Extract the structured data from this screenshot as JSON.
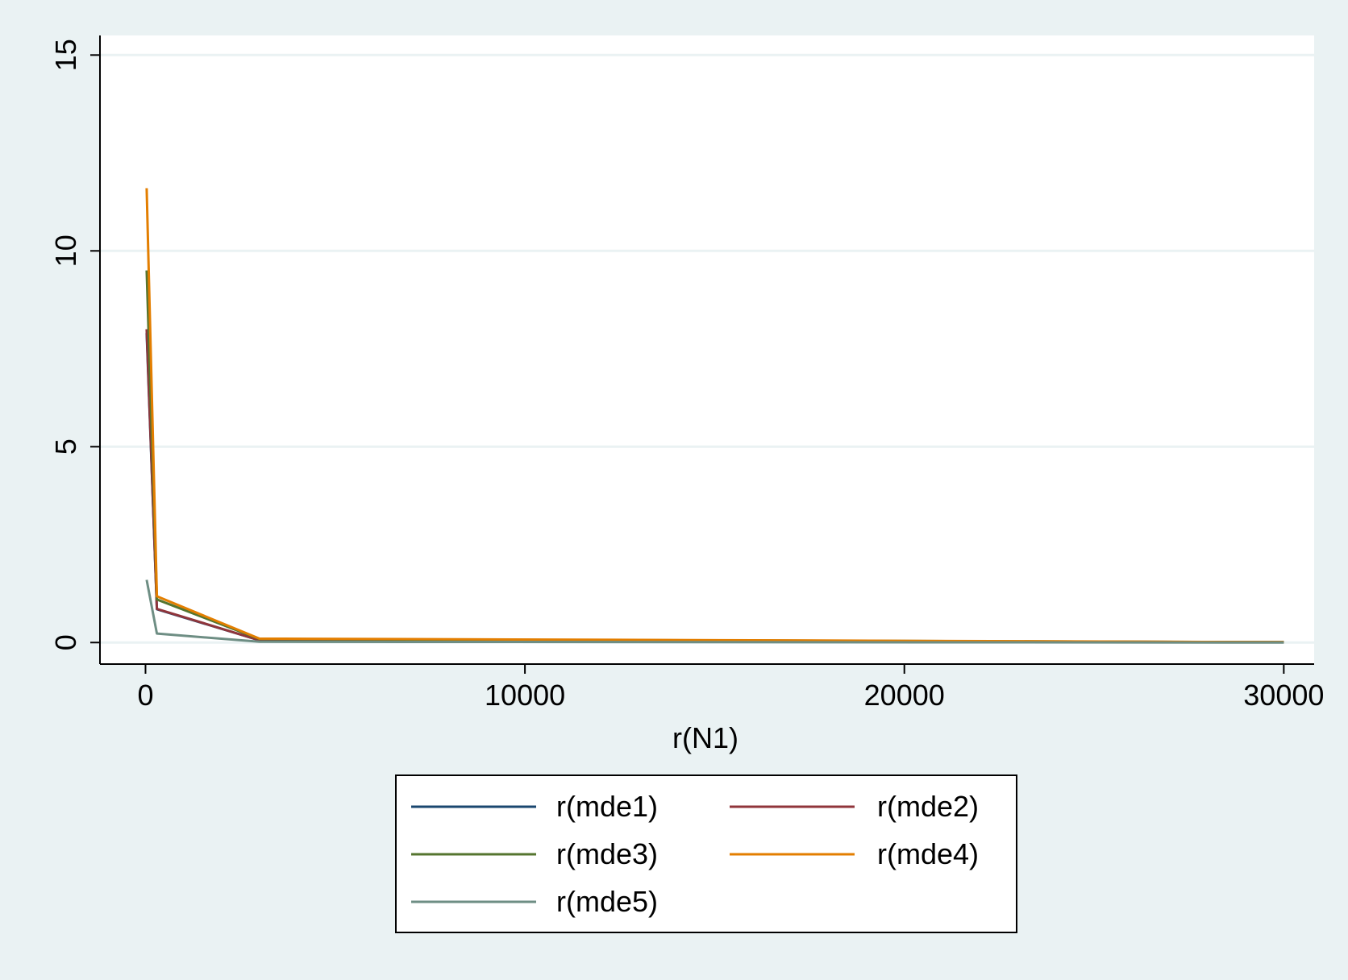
{
  "chart_data": {
    "type": "line",
    "title": "",
    "xlabel": "r(N1)",
    "ylabel": "",
    "xlim": [
      -1200,
      30800
    ],
    "ylim": [
      -0.55,
      15.5
    ],
    "xticks": [
      0,
      10000,
      20000,
      30000
    ],
    "yticks": [
      0,
      5,
      10,
      15
    ],
    "grid": "horizontal",
    "legend_placement": "bottom",
    "background_color": "#eaf2f3",
    "plot_background_color": "#ffffff",
    "gridline_color": "#eaf2f3",
    "x": [
      30,
      300,
      3000,
      30000
    ],
    "series": [
      {
        "name": "r(mde1)",
        "color": "#1a476f",
        "values": [
          7.9,
          0.85,
          0.06,
          0.01
        ]
      },
      {
        "name": "r(mde2)",
        "color": "#90353b",
        "values": [
          8.0,
          0.86,
          0.06,
          0.01
        ]
      },
      {
        "name": "r(mde3)",
        "color": "#55752f",
        "values": [
          9.5,
          1.1,
          0.09,
          0.01
        ]
      },
      {
        "name": "r(mde4)",
        "color": "#e37e00",
        "values": [
          11.6,
          1.18,
          0.1,
          0.01
        ]
      },
      {
        "name": "r(mde5)",
        "color": "#6e8e84",
        "values": [
          1.6,
          0.23,
          0.02,
          0.0
        ]
      }
    ]
  }
}
